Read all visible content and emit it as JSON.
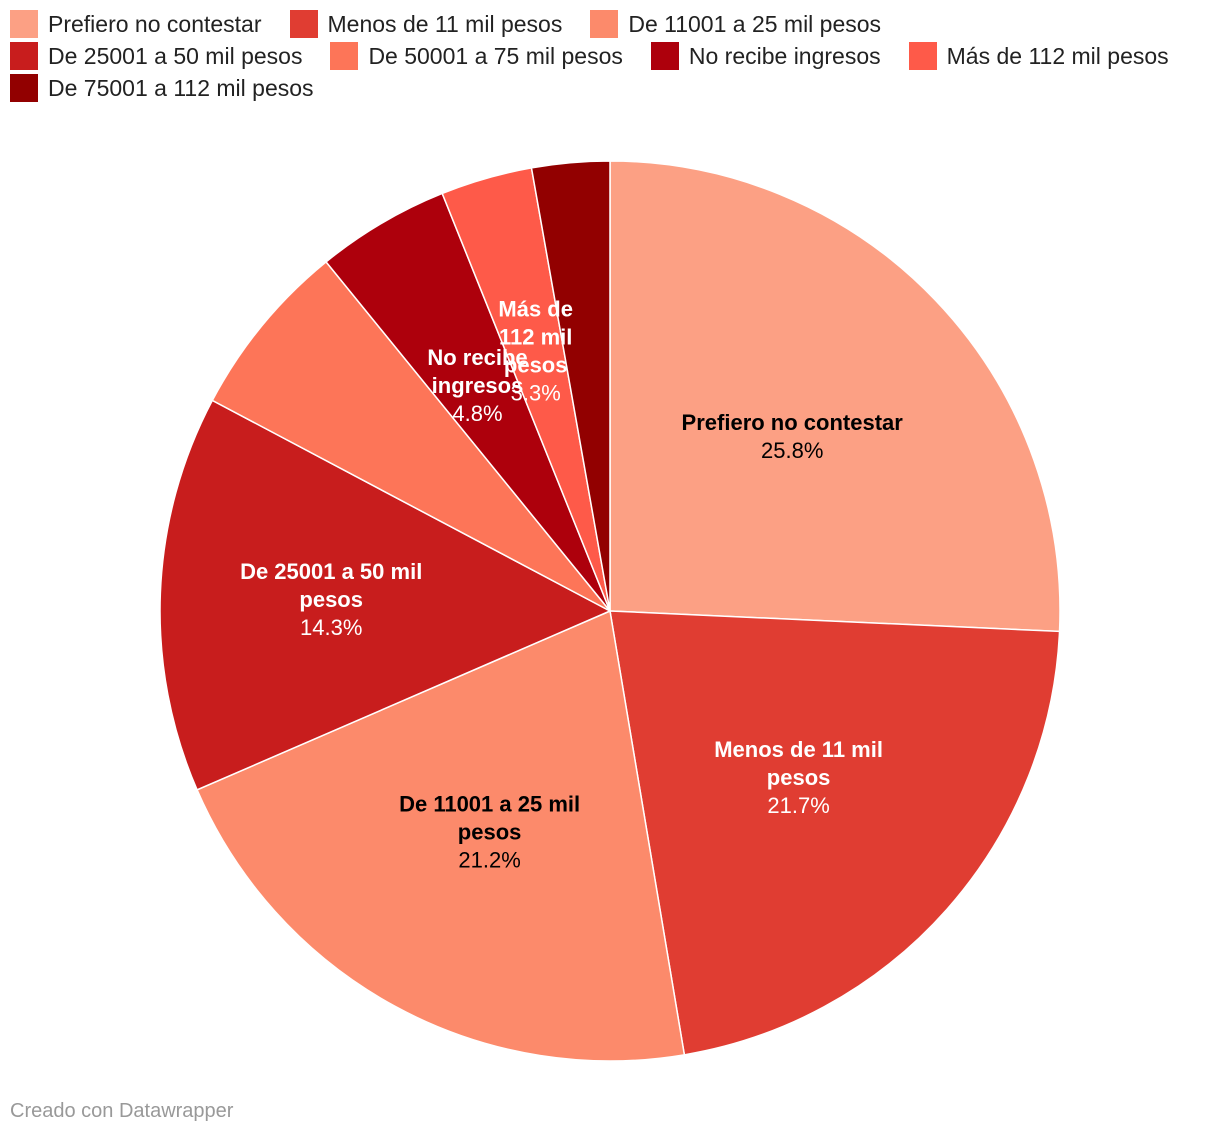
{
  "chart_data": {
    "type": "pie",
    "title": "",
    "legend_position": "top",
    "slices": [
      {
        "label": "Prefiero no contestar",
        "value": 25.8,
        "display": "25.8%",
        "color": "#fca084",
        "label_lines": [
          "Prefiero no contestar"
        ],
        "text_color": "#000000"
      },
      {
        "label": "Menos de 11 mil pesos",
        "value": 21.7,
        "display": "21.7%",
        "color": "#e03d32",
        "label_lines": [
          "Menos de 11 mil",
          "pesos"
        ],
        "text_color": "#ffffff"
      },
      {
        "label": "De 11001 a 25 mil pesos",
        "value": 21.2,
        "display": "21.2%",
        "color": "#fc8a6b",
        "label_lines": [
          "De 11001 a 25 mil",
          "pesos"
        ],
        "text_color": "#000000"
      },
      {
        "label": "De 25001 a 50 mil pesos",
        "value": 14.3,
        "display": "14.3%",
        "color": "#c81d1d",
        "label_lines": [
          "De 25001 a 50 mil",
          "pesos"
        ],
        "text_color": "#ffffff"
      },
      {
        "label": "De 50001 a 75 mil pesos",
        "value": 6.4,
        "display": "",
        "color": "#fd7558",
        "label_lines": [],
        "text_color": "#ffffff"
      },
      {
        "label": "No recibe ingresos",
        "value": 4.8,
        "display": "4.8%",
        "color": "#ad000c",
        "label_lines": [
          "No recibe",
          "ingresos"
        ],
        "text_color": "#ffffff"
      },
      {
        "label": "Más de 112 mil pesos",
        "value": 3.3,
        "display": "3.3%",
        "color": "#fe5a49",
        "label_lines": [
          "Más de",
          "112 mil",
          "pesos"
        ],
        "text_color": "#ffffff"
      },
      {
        "label": "De 75001 a 112 mil pesos",
        "value": 2.8,
        "display": "",
        "color": "#920000",
        "label_lines": [],
        "text_color": "#ffffff"
      }
    ]
  },
  "legend": {
    "rows": [
      [
        {
          "label": "Prefiero no contestar",
          "color": "#fca084"
        },
        {
          "label": "Menos de 11 mil pesos",
          "color": "#e03d32"
        },
        {
          "label": "De 11001 a 25 mil pesos",
          "color": "#fc8a6b"
        }
      ],
      [
        {
          "label": "De 25001 a 50 mil pesos",
          "color": "#c81d1d"
        },
        {
          "label": "De 50001 a 75 mil pesos",
          "color": "#fd7558"
        },
        {
          "label": "No recibe ingresos",
          "color": "#ad000c"
        },
        {
          "label": "Más de 112 mil pesos",
          "color": "#fe5a49"
        }
      ],
      [
        {
          "label": "De 75001 a 112 mil pesos",
          "color": "#920000"
        }
      ]
    ]
  },
  "credit": "Creado con Datawrapper"
}
